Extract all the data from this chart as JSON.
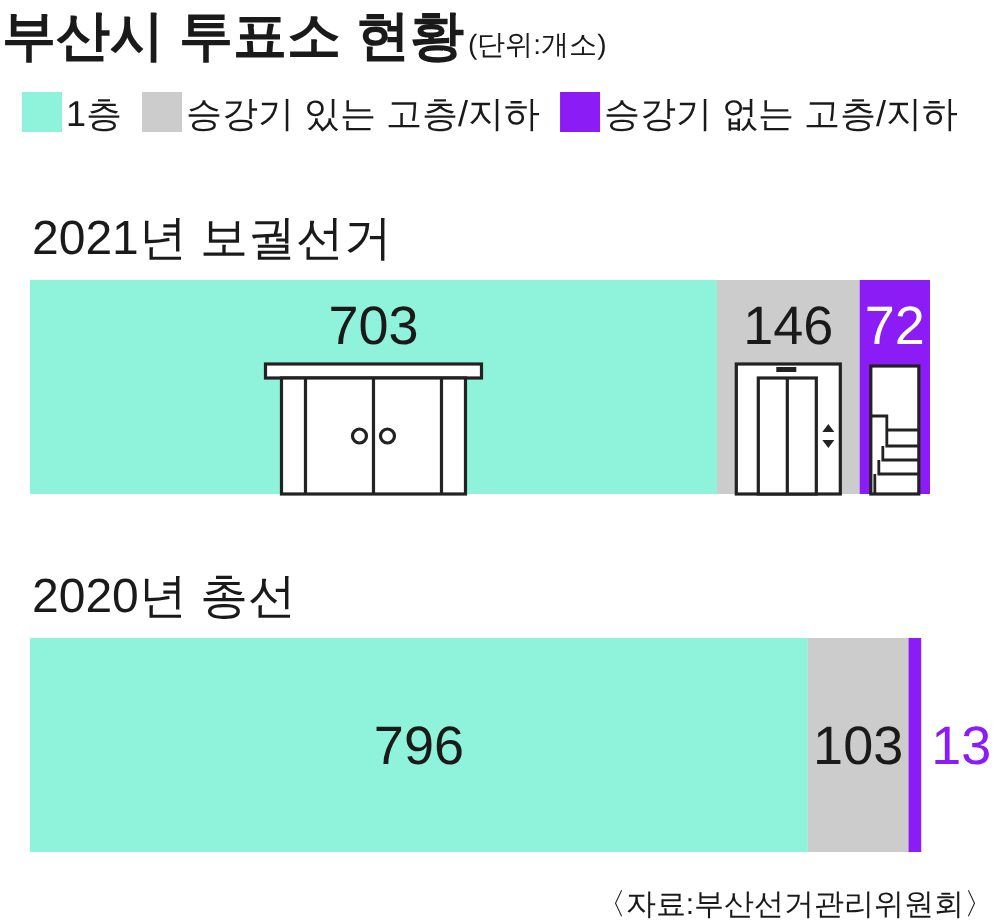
{
  "chart_data": {
    "type": "bar",
    "orientation": "horizontal",
    "stacked": true,
    "title": "부산시 투표소 현황",
    "subtitle": "(단위:개소)",
    "categories": [
      "2021년 보궐선거",
      "2020년 총선"
    ],
    "series": [
      {
        "name": "1층",
        "color": "#8ff2da",
        "values": [
          703,
          796
        ]
      },
      {
        "name": "승강기 있는 고층/지하",
        "color": "#cccccc",
        "values": [
          146,
          103
        ]
      },
      {
        "name": "승강기 없는 고층/지하",
        "color": "#8b1cf5",
        "values": [
          72,
          13
        ]
      }
    ],
    "data_labels": true,
    "legend": "top left",
    "annotations": [
      "〈자료:부산선거관리위원회〉"
    ]
  }
}
